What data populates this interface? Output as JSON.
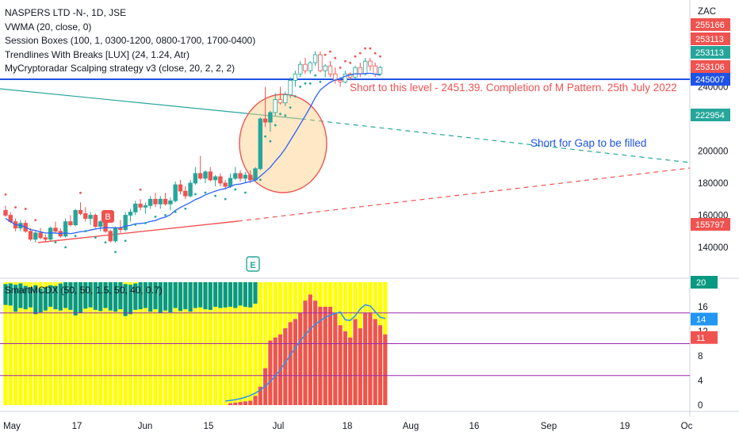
{
  "legend": {
    "title": "NASPERS LTD -N-, 1D, JSE",
    "lines": [
      "VWMA (20, close, 0)",
      "Session Boxes (100, 1, 0300-1200, 0800-1700, 1700-0400)",
      "Trendlines With Breaks [LUX] (24, 1.24, Atr)",
      "MyCryptoradar Scalping strategy v3 (close, 20, 2, 2, 2)"
    ]
  },
  "sub_legend": "SmartMCDX (50, 50, 1.5, 50, 40, 0.7)",
  "currency": "ZAC",
  "annotations": {
    "short_level": "Short to this level - 2451.39. Completion of M Pattern. 25th July 2022",
    "gap": "Short for Gap to be filled"
  },
  "markers": {
    "buy": "B",
    "earnings": "E"
  },
  "price_badges": [
    {
      "text": "255166",
      "value": 255166,
      "color": "#ef5350"
    },
    {
      "text": "253113",
      "value": 253113,
      "color": "#ef5350"
    },
    {
      "text": "253113",
      "value": 253113,
      "color": "#26a69a"
    },
    {
      "text": "253106",
      "value": 253106,
      "color": "#ef5350"
    },
    {
      "text": "245007",
      "value": 245007,
      "color": "#1e53e5"
    },
    {
      "text": "222954",
      "value": 222954,
      "color": "#26a69a"
    },
    {
      "text": "155797",
      "value": 155797,
      "color": "#ef5350"
    }
  ],
  "sub_badges": [
    {
      "text": "20",
      "value": 20,
      "color": "#089981"
    },
    {
      "text": "14",
      "value": 14,
      "color": "#2196f3"
    },
    {
      "text": "11",
      "value": 11,
      "color": "#ef5350"
    }
  ],
  "colors": {
    "up": "#26a69a",
    "down": "#ef5350",
    "vwma": "#2962ff",
    "level": "#1e53e5",
    "retail": "#ffff00",
    "banker": "#ef5350",
    "hotmoney": "#089981",
    "purple": "#9c27b0"
  },
  "chart_data": {
    "type": "candlestick",
    "x_ticks": [
      "May",
      "17",
      "Jun",
      "15",
      "Jul",
      "18",
      "Aug",
      "16",
      "Sep",
      "19",
      "Oc"
    ],
    "y_ticks": [
      140000,
      160000,
      180000,
      200000,
      240000
    ],
    "ylim": [
      125000,
      262000
    ],
    "level_line": 245007,
    "ohlc": [
      [
        163000,
        166000,
        159000,
        160000
      ],
      [
        160000,
        162000,
        155000,
        156000
      ],
      [
        156000,
        158000,
        150000,
        152000
      ],
      [
        152000,
        157000,
        150000,
        155000
      ],
      [
        155000,
        157000,
        149000,
        150000
      ],
      [
        150000,
        152000,
        144000,
        145000
      ],
      [
        145000,
        150000,
        143000,
        149000
      ],
      [
        149000,
        152000,
        145000,
        146000
      ],
      [
        146000,
        148000,
        143000,
        145000
      ],
      [
        145000,
        153000,
        144000,
        152000
      ],
      [
        152000,
        156000,
        149000,
        150000
      ],
      [
        150000,
        152000,
        146000,
        147000
      ],
      [
        147000,
        158000,
        146000,
        156000
      ],
      [
        156000,
        160000,
        153000,
        154000
      ],
      [
        154000,
        164000,
        153000,
        163000
      ],
      [
        163000,
        168000,
        160000,
        161000
      ],
      [
        161000,
        165000,
        156000,
        158000
      ],
      [
        158000,
        162000,
        154000,
        160000
      ],
      [
        160000,
        161000,
        152000,
        153000
      ],
      [
        153000,
        157000,
        150000,
        156000
      ],
      [
        156000,
        158000,
        149000,
        150000
      ],
      [
        150000,
        151000,
        143000,
        144000
      ],
      [
        144000,
        153000,
        143000,
        152000
      ],
      [
        152000,
        157000,
        149000,
        151000
      ],
      [
        151000,
        162000,
        150000,
        160000
      ],
      [
        160000,
        164000,
        156000,
        162000
      ],
      [
        162000,
        169000,
        160000,
        167000
      ],
      [
        167000,
        170000,
        163000,
        165000
      ],
      [
        165000,
        168000,
        161000,
        166000
      ],
      [
        166000,
        172000,
        164000,
        170000
      ],
      [
        170000,
        174000,
        165000,
        167000
      ],
      [
        167000,
        172000,
        164000,
        170000
      ],
      [
        170000,
        174000,
        166000,
        167000
      ],
      [
        167000,
        171000,
        163000,
        169000
      ],
      [
        169000,
        181000,
        168000,
        179000
      ],
      [
        179000,
        182000,
        173000,
        175000
      ],
      [
        175000,
        178000,
        170000,
        172000
      ],
      [
        172000,
        182000,
        171000,
        180000
      ],
      [
        180000,
        190000,
        179000,
        186000
      ],
      [
        186000,
        197000,
        182000,
        183000
      ],
      [
        183000,
        188000,
        180000,
        187000
      ],
      [
        187000,
        190000,
        181000,
        182000
      ],
      [
        182000,
        185000,
        178000,
        184000
      ],
      [
        184000,
        186000,
        178000,
        180000
      ],
      [
        180000,
        182000,
        176000,
        178000
      ],
      [
        178000,
        186000,
        177000,
        183000
      ],
      [
        183000,
        190000,
        182000,
        186000
      ],
      [
        186000,
        188000,
        181000,
        183000
      ],
      [
        183000,
        187000,
        180000,
        185000
      ],
      [
        185000,
        188000,
        180000,
        182000
      ],
      [
        182000,
        190000,
        181000,
        189000
      ],
      [
        189000,
        221000,
        188000,
        220000
      ],
      [
        220000,
        240000,
        215000,
        218000
      ],
      [
        218000,
        225000,
        212000,
        224000
      ],
      [
        224000,
        236000,
        222000,
        232000
      ],
      [
        232000,
        240000,
        229000,
        230000
      ],
      [
        230000,
        237000,
        228000,
        235000
      ],
      [
        235000,
        246000,
        233000,
        244000
      ],
      [
        244000,
        250000,
        240000,
        248000
      ],
      [
        248000,
        256000,
        246000,
        254000
      ],
      [
        254000,
        258000,
        248000,
        250000
      ],
      [
        250000,
        256000,
        248000,
        255000
      ],
      [
        255000,
        262000,
        253000,
        260000
      ],
      [
        260000,
        262000,
        249000,
        250000
      ],
      [
        250000,
        254000,
        246000,
        253000
      ],
      [
        253000,
        256000,
        246000,
        248000
      ],
      [
        248000,
        252000,
        242000,
        244000
      ],
      [
        244000,
        246000,
        240000,
        243000
      ],
      [
        243000,
        250000,
        242000,
        248000
      ],
      [
        248000,
        249000,
        244000,
        246000
      ],
      [
        246000,
        253000,
        245000,
        252000
      ],
      [
        252000,
        255000,
        246000,
        248000
      ],
      [
        248000,
        258000,
        247000,
        256000
      ],
      [
        256000,
        258000,
        250000,
        253000
      ],
      [
        253000,
        255000,
        246000,
        248000
      ],
      [
        248000,
        253000,
        247000,
        252000
      ]
    ],
    "sub_panel": {
      "ylim": [
        0,
        20
      ],
      "y_ticks": [
        0,
        4,
        8,
        12,
        16,
        20
      ],
      "purple_levels": [
        4.8,
        10,
        15
      ],
      "retail_top": 20,
      "banker": [
        0,
        0,
        0,
        0,
        0,
        0,
        0,
        0,
        0,
        0,
        0,
        0,
        0,
        0,
        0,
        0,
        0,
        0,
        0,
        0,
        0,
        0,
        0,
        0,
        0,
        0,
        0,
        0,
        0,
        0,
        0,
        0,
        0,
        0,
        0,
        0,
        0,
        0,
        0,
        0,
        0,
        0,
        0,
        0,
        0,
        0.3,
        0.4,
        0.5,
        0.6,
        0.7,
        1.5,
        3,
        6,
        10.5,
        11,
        11.5,
        12.5,
        13.5,
        14,
        15,
        17,
        18,
        17,
        16,
        16,
        16,
        15,
        13,
        12,
        11,
        14,
        12.5,
        15,
        15,
        14,
        13,
        11.5
      ],
      "hotmoney": [
        19.7,
        19.8,
        19.6,
        19.8,
        19.4,
        19.2,
        19.5,
        19.0,
        19.2,
        19.5,
        19.4,
        19.8,
        20,
        20,
        20,
        20,
        20,
        20,
        20,
        20,
        20,
        20,
        20,
        20,
        19.7,
        19.6,
        19.8,
        20,
        20,
        20,
        20,
        20,
        20,
        20,
        20,
        20,
        20,
        20,
        20,
        20,
        20,
        20,
        20,
        20,
        20,
        20,
        20,
        20,
        20,
        20,
        20,
        20,
        20,
        20,
        20,
        20,
        20,
        20,
        20,
        20,
        20,
        20,
        20,
        20,
        20,
        20,
        20,
        20,
        20,
        20,
        20,
        20,
        20,
        20,
        20,
        20,
        20
      ],
      "hotmoney_bottom": [
        16.3,
        16.2,
        15.2,
        15.8,
        15.6,
        15.9,
        14.8,
        15.1,
        15.4,
        16.0,
        15.6,
        15.4,
        15.8,
        15.5,
        14.6,
        15.0,
        15.7,
        15.9,
        15.5,
        15.3,
        15.8,
        15.4,
        15.2,
        15.6,
        14.5,
        14.8,
        15.5,
        15.6,
        15.8,
        15.2,
        15.6,
        15.0,
        15.4,
        15.1,
        15.8,
        15.3,
        15.6,
        15.2,
        15.8,
        15.9,
        15.6,
        15.5,
        16.0,
        15.8,
        15.9,
        16.0,
        15.8,
        16.2,
        16.0,
        15.9,
        16.5,
        20,
        20,
        20,
        20,
        20,
        20,
        20,
        20,
        20,
        20,
        20,
        20,
        20,
        20,
        20,
        20,
        20,
        20,
        20,
        20,
        20,
        20,
        20,
        20,
        20,
        20
      ]
    }
  }
}
